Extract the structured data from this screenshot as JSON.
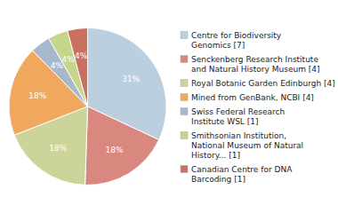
{
  "chart_data": {
    "type": "pie",
    "categories": [
      "Centre for Biodiversity\nGenomics [7]",
      "Senckenberg Research Institute\nand Natural History Museum [4]",
      "Royal Botanic Garden Edinburgh [4]",
      "Mined from GenBank, NCBI [4]",
      "Swiss Federal Research\nInstitute WSL [1]",
      "Smithsonian Institution,\nNational Museum of Natural\nHistory... [1]",
      "Canadian Centre for DNA\nBarcoding [1]"
    ],
    "values": [
      31,
      18,
      18,
      18,
      4,
      4,
      4
    ],
    "value_labels": [
      "31%",
      "18%",
      "18%",
      "18%",
      "4%",
      "4%",
      "4%"
    ],
    "colors": [
      "#bccfdf",
      "#d98880",
      "#cdd49a",
      "#f0a85e",
      "#a8b8cc",
      "#c5d68a",
      "#c97060"
    ],
    "data_labels": true,
    "legend": "right"
  }
}
